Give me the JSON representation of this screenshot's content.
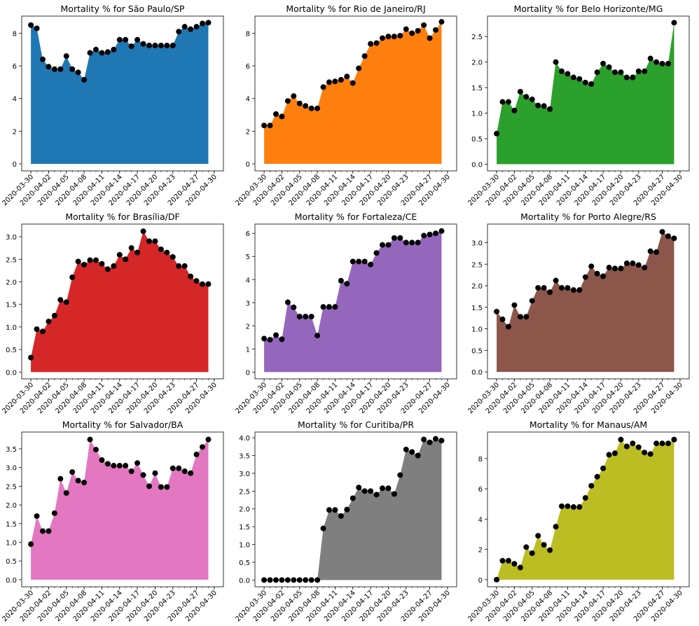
{
  "chart_data": [
    {
      "type": "area",
      "title": "Mortality % for São Paulo/SP",
      "color": "#1f77b4",
      "x_ticks": [
        "2020-03-30",
        "2020-04-02",
        "2020-04-05",
        "2020-04-08",
        "2020-04-11",
        "2020-04-14",
        "2020-04-17",
        "2020-04-20",
        "2020-04-23",
        "2020-04-27",
        "2020-04-30"
      ],
      "ylim": [
        -0.43,
        9.05
      ],
      "y_ticks": [
        0,
        2,
        4,
        6,
        8
      ],
      "y_tick_labels": [
        "0",
        "2",
        "4",
        "6",
        "8"
      ],
      "values": [
        8.5,
        8.3,
        6.4,
        5.95,
        5.8,
        5.8,
        6.6,
        5.8,
        5.6,
        5.15,
        6.8,
        7.0,
        6.8,
        6.85,
        7.0,
        7.6,
        7.6,
        7.2,
        7.6,
        7.35,
        7.25,
        7.25,
        7.25,
        7.25,
        7.25,
        8.1,
        8.4,
        8.25,
        8.4,
        8.6,
        8.65
      ]
    },
    {
      "type": "area",
      "title": "Mortality % for Rio de Janeiro/RJ",
      "color": "#ff7f0e",
      "x_ticks": [
        "2020-03-30",
        "2020-04-02",
        "2020-04-05",
        "2020-04-08",
        "2020-04-11",
        "2020-04-14",
        "2020-04-17",
        "2020-04-20",
        "2020-04-23",
        "2020-04-27",
        "2020-04-30"
      ],
      "ylim": [
        -0.43,
        9.05
      ],
      "y_ticks": [
        0,
        2,
        4,
        6,
        8
      ],
      "y_tick_labels": [
        "0",
        "2",
        "4",
        "6",
        "8"
      ],
      "values": [
        2.35,
        2.35,
        3.05,
        2.9,
        3.85,
        4.15,
        3.7,
        3.55,
        3.4,
        3.4,
        4.7,
        5.0,
        5.05,
        5.15,
        5.35,
        4.95,
        5.85,
        6.6,
        7.35,
        7.4,
        7.7,
        7.8,
        7.8,
        7.85,
        8.25,
        8.0,
        8.15,
        8.5,
        7.7,
        8.2,
        8.7
      ]
    },
    {
      "type": "area",
      "title": "Mortality % for Belo Horizonte/MG",
      "color": "#2ca02c",
      "x_ticks": [
        "2020-03-30",
        "2020-04-02",
        "2020-04-05",
        "2020-04-08",
        "2020-04-11",
        "2020-04-14",
        "2020-04-17",
        "2020-04-20",
        "2020-04-23",
        "2020-04-27",
        "2020-04-30"
      ],
      "ylim": [
        -0.13,
        2.9
      ],
      "y_ticks": [
        0,
        0.5,
        1.0,
        1.5,
        2.0,
        2.5
      ],
      "y_tick_labels": [
        "0.0",
        "0.5",
        "1.0",
        "1.5",
        "2.0",
        "2.5"
      ],
      "values": [
        0.6,
        1.22,
        1.22,
        1.05,
        1.42,
        1.32,
        1.27,
        1.15,
        1.14,
        1.08,
        2.0,
        1.82,
        1.77,
        1.7,
        1.67,
        1.6,
        1.57,
        1.8,
        1.97,
        1.9,
        1.8,
        1.8,
        1.7,
        1.7,
        1.82,
        1.82,
        2.07,
        2.0,
        1.97,
        1.97,
        2.77
      ]
    },
    {
      "type": "area",
      "title": "Mortality % for Brasília/DF",
      "color": "#d62728",
      "x_ticks": [
        "2020-03-30",
        "2020-04-02",
        "2020-04-05",
        "2020-04-08",
        "2020-04-11",
        "2020-04-14",
        "2020-04-17",
        "2020-04-20",
        "2020-04-23",
        "2020-04-27",
        "2020-04-30"
      ],
      "ylim": [
        -0.15,
        3.28
      ],
      "y_ticks": [
        0,
        0.5,
        1.0,
        1.5,
        2.0,
        2.5,
        3.0
      ],
      "y_tick_labels": [
        "0.0",
        "0.5",
        "1.0",
        "1.5",
        "2.0",
        "2.5",
        "3.0"
      ],
      "values": [
        0.32,
        0.95,
        0.9,
        1.12,
        1.25,
        1.6,
        1.55,
        2.1,
        2.45,
        2.38,
        2.48,
        2.48,
        2.4,
        2.28,
        2.35,
        2.6,
        2.5,
        2.75,
        2.65,
        3.12,
        2.9,
        2.9,
        2.72,
        2.65,
        2.55,
        2.35,
        2.35,
        2.12,
        2.02,
        1.95,
        1.95
      ]
    },
    {
      "type": "area",
      "title": "Mortality % for Fortaleza/CE",
      "color": "#9467bd",
      "x_ticks": [
        "2020-03-30",
        "2020-04-02",
        "2020-04-05",
        "2020-04-08",
        "2020-04-11",
        "2020-04-14",
        "2020-04-17",
        "2020-04-20",
        "2020-04-23",
        "2020-04-27",
        "2020-04-30"
      ],
      "ylim": [
        -0.29,
        6.4
      ],
      "y_ticks": [
        0,
        1,
        2,
        3,
        4,
        5,
        6
      ],
      "y_tick_labels": [
        "0",
        "1",
        "2",
        "3",
        "4",
        "5",
        "6"
      ],
      "values": [
        1.45,
        1.4,
        1.6,
        1.42,
        3.02,
        2.8,
        2.4,
        2.4,
        2.4,
        1.58,
        2.82,
        2.82,
        2.82,
        3.95,
        3.82,
        4.78,
        4.78,
        4.78,
        4.65,
        5.15,
        5.5,
        5.5,
        5.8,
        5.8,
        5.6,
        5.6,
        5.6,
        5.9,
        5.95,
        6.0,
        6.1
      ]
    },
    {
      "type": "area",
      "title": "Mortality % for Porto Alegre/RS",
      "color": "#8c564b",
      "x_ticks": [
        "2020-03-30",
        "2020-04-02",
        "2020-04-05",
        "2020-04-08",
        "2020-04-11",
        "2020-04-14",
        "2020-04-17",
        "2020-04-20",
        "2020-04-23",
        "2020-04-27",
        "2020-04-30"
      ],
      "ylim": [
        -0.16,
        3.43
      ],
      "y_ticks": [
        0,
        0.5,
        1.0,
        1.5,
        2.0,
        2.5,
        3.0
      ],
      "y_tick_labels": [
        "0.0",
        "0.5",
        "1.0",
        "1.5",
        "2.0",
        "2.5",
        "3.0"
      ],
      "values": [
        1.4,
        1.22,
        1.05,
        1.55,
        1.28,
        1.28,
        1.65,
        1.95,
        1.95,
        1.85,
        2.12,
        1.95,
        1.95,
        1.9,
        1.9,
        2.2,
        2.45,
        2.28,
        2.22,
        2.42,
        2.4,
        2.4,
        2.52,
        2.52,
        2.48,
        2.42,
        2.8,
        2.78,
        3.25,
        3.15,
        3.1
      ]
    },
    {
      "type": "area",
      "title": "Mortality % for Salvador/BA",
      "color": "#e377c2",
      "x_ticks": [
        "2020-03-30",
        "2020-04-02",
        "2020-04-05",
        "2020-04-08",
        "2020-04-11",
        "2020-04-14",
        "2020-04-17",
        "2020-04-20",
        "2020-04-23",
        "2020-04-27",
        "2020-04-30"
      ],
      "ylim": [
        -0.19,
        3.95
      ],
      "y_ticks": [
        0,
        0.5,
        1.0,
        1.5,
        2.0,
        2.5,
        3.0,
        3.5
      ],
      "y_tick_labels": [
        "0.0",
        "0.5",
        "1.0",
        "1.5",
        "2.0",
        "2.5",
        "3.0",
        "3.5"
      ],
      "values": [
        0.95,
        1.7,
        1.3,
        1.3,
        1.78,
        2.7,
        2.32,
        2.88,
        2.65,
        2.6,
        3.75,
        3.48,
        3.2,
        3.1,
        3.05,
        3.05,
        3.05,
        2.9,
        3.12,
        2.8,
        2.5,
        2.85,
        2.48,
        2.48,
        2.98,
        2.98,
        2.9,
        2.85,
        3.35,
        3.55,
        3.75
      ]
    },
    {
      "type": "area",
      "title": "Mortality % for Curitiba/PR",
      "color": "#7f7f7f",
      "x_ticks": [
        "2020-03-30",
        "2020-04-02",
        "2020-04-05",
        "2020-04-08",
        "2020-04-11",
        "2020-04-14",
        "2020-04-17",
        "2020-04-20",
        "2020-04-23",
        "2020-04-27",
        "2020-04-30"
      ],
      "ylim": [
        -0.19,
        4.16
      ],
      "y_ticks": [
        0,
        0.5,
        1.0,
        1.5,
        2.0,
        2.5,
        3.0,
        3.5,
        4.0
      ],
      "y_tick_labels": [
        "0.0",
        "0.5",
        "1.0",
        "1.5",
        "2.0",
        "2.5",
        "3.0",
        "3.5",
        "4.0"
      ],
      "values": [
        0,
        0,
        0,
        0,
        0,
        0,
        0,
        0,
        0,
        0,
        1.45,
        1.97,
        1.97,
        1.8,
        1.98,
        2.3,
        2.6,
        2.5,
        2.5,
        2.4,
        2.58,
        2.58,
        2.42,
        2.95,
        3.67,
        3.6,
        3.5,
        3.95,
        3.87,
        3.97,
        3.92
      ]
    },
    {
      "type": "area",
      "title": "Mortality % for Manaus/AM",
      "color": "#bcbd22",
      "x_ticks": [
        "2020-03-30",
        "2020-04-02",
        "2020-04-05",
        "2020-04-08",
        "2020-04-11",
        "2020-04-14",
        "2020-04-17",
        "2020-04-20",
        "2020-04-23",
        "2020-04-27",
        "2020-04-30"
      ],
      "ylim": [
        -0.47,
        9.75
      ],
      "y_ticks": [
        0,
        2,
        4,
        6,
        8
      ],
      "y_tick_labels": [
        "0",
        "2",
        "4",
        "6",
        "8"
      ],
      "values": [
        0,
        1.25,
        1.25,
        1.05,
        0.8,
        2.15,
        1.75,
        2.9,
        2.3,
        1.95,
        3.5,
        4.85,
        4.85,
        4.8,
        4.8,
        5.4,
        6.2,
        6.8,
        7.35,
        8.25,
        8.35,
        9.25,
        8.8,
        9.0,
        8.75,
        8.4,
        8.3,
        9.0,
        9.0,
        9.0,
        9.25
      ]
    }
  ]
}
